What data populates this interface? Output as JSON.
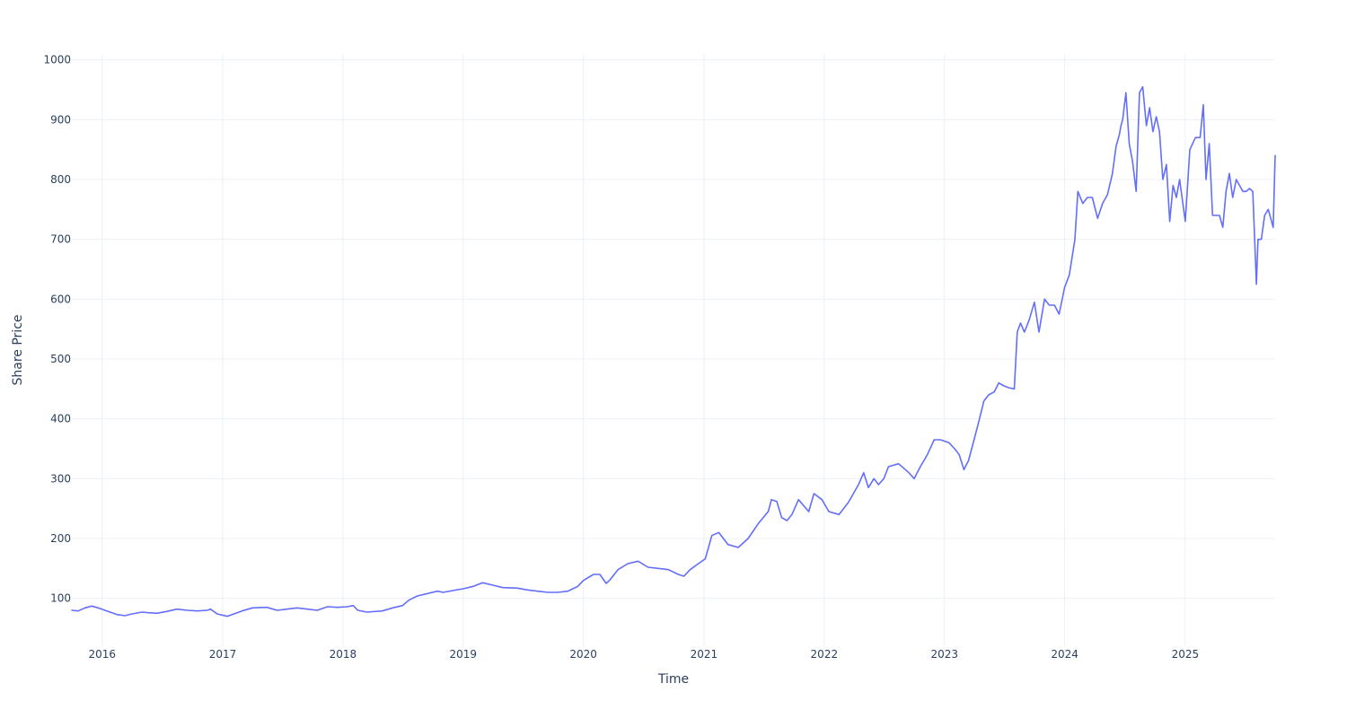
{
  "chart_data": {
    "type": "line",
    "title": "",
    "xlabel": "Time",
    "ylabel": "Share Price",
    "x_tick_labels": [
      "2016",
      "2017",
      "2018",
      "2019",
      "2020",
      "2021",
      "2022",
      "2023",
      "2024",
      "2025"
    ],
    "x_tick_years": [
      2016,
      2017,
      2018,
      2019,
      2020,
      2021,
      2022,
      2023,
      2024,
      2025
    ],
    "y_ticks": [
      100,
      200,
      300,
      400,
      500,
      600,
      700,
      800,
      900,
      1000
    ],
    "y_tick_labels": [
      "100",
      "200",
      "300",
      "400",
      "500",
      "600",
      "700",
      "800",
      "900",
      "1000"
    ],
    "xlim": [
      "2015-10-01",
      "2025-10-01"
    ],
    "ylim": [
      20,
      1010
    ],
    "grid": true,
    "legend": "none",
    "colors": {
      "line": "#636efa",
      "grid": "#ebf0f8",
      "text": "#2a3f5f"
    },
    "series": [
      {
        "x": [
          "2015-10-01",
          "2015-10-20",
          "2015-11-10",
          "2015-12-01",
          "2015-12-20",
          "2016-01-15",
          "2016-02-15",
          "2016-03-10",
          "2016-04-01",
          "2016-05-01",
          "2016-05-20",
          "2016-06-15",
          "2016-07-15",
          "2016-08-15",
          "2016-09-15",
          "2016-10-15",
          "2016-11-15",
          "2016-11-25",
          "2016-12-15",
          "2017-01-15",
          "2017-03-01",
          "2017-04-01",
          "2017-05-15",
          "2017-06-15",
          "2017-07-15",
          "2017-08-15",
          "2017-09-15",
          "2017-10-15",
          "2017-11-15",
          "2017-12-15",
          "2018-01-15",
          "2018-02-01",
          "2018-02-15",
          "2018-03-15",
          "2018-05-01",
          "2018-06-01",
          "2018-07-01",
          "2018-07-20",
          "2018-08-15",
          "2018-09-15",
          "2018-10-15",
          "2018-11-01",
          "2018-12-01",
          "2019-01-01",
          "2019-02-01",
          "2019-03-01",
          "2019-04-01",
          "2019-05-01",
          "2019-06-15",
          "2019-07-15",
          "2019-08-15",
          "2019-09-15",
          "2019-10-15",
          "2019-11-15",
          "2019-12-15",
          "2020-01-01",
          "2020-02-01",
          "2020-02-20",
          "2020-03-10",
          "2020-03-20",
          "2020-04-15",
          "2020-05-15",
          "2020-06-15",
          "2020-07-15",
          "2020-08-15",
          "2020-09-15",
          "2020-10-15",
          "2020-11-01",
          "2020-11-20",
          "2020-12-15",
          "2021-01-05",
          "2021-01-25",
          "2021-02-15",
          "2021-03-15",
          "2021-04-15",
          "2021-05-15",
          "2021-06-15",
          "2021-07-15",
          "2021-07-25",
          "2021-08-10",
          "2021-08-25",
          "2021-09-10",
          "2021-09-25",
          "2021-10-15",
          "2021-11-15",
          "2021-12-01",
          "2021-12-25",
          "2022-01-15",
          "2022-02-15",
          "2022-03-15",
          "2022-04-15",
          "2022-05-01",
          "2022-05-15",
          "2022-06-01",
          "2022-06-15",
          "2022-07-01",
          "2022-07-15",
          "2022-08-15",
          "2022-09-15",
          "2022-10-01",
          "2022-10-20",
          "2022-11-10",
          "2022-12-01",
          "2022-12-20",
          "2023-01-15",
          "2023-02-01",
          "2023-02-15",
          "2023-03-01",
          "2023-03-15",
          "2023-04-01",
          "2023-04-15",
          "2023-05-01",
          "2023-05-15",
          "2023-06-01",
          "2023-06-15",
          "2023-07-01",
          "2023-07-15",
          "2023-08-01",
          "2023-08-10",
          "2023-08-20",
          "2023-09-01",
          "2023-09-15",
          "2023-10-01",
          "2023-10-15",
          "2023-11-01",
          "2023-11-15",
          "2023-12-01",
          "2023-12-15",
          "2024-01-01",
          "2024-01-15",
          "2024-02-01",
          "2024-02-10",
          "2024-02-25",
          "2024-03-10",
          "2024-03-25",
          "2024-04-10",
          "2024-04-25",
          "2024-05-10",
          "2024-05-25",
          "2024-06-05",
          "2024-06-15",
          "2024-06-20",
          "2024-06-25",
          "2024-07-05",
          "2024-07-15",
          "2024-07-25",
          "2024-08-05",
          "2024-08-15",
          "2024-08-25",
          "2024-09-05",
          "2024-09-15",
          "2024-09-25",
          "2024-10-05",
          "2024-10-15",
          "2024-10-25",
          "2024-11-05",
          "2024-11-15",
          "2024-11-25",
          "2024-12-05",
          "2024-12-15",
          "2025-01-01",
          "2025-01-15",
          "2025-02-01",
          "2025-02-15",
          "2025-02-25",
          "2025-03-05",
          "2025-03-15",
          "2025-03-25",
          "2025-04-05",
          "2025-04-15",
          "2025-04-25",
          "2025-05-05",
          "2025-05-15",
          "2025-05-25",
          "2025-06-05",
          "2025-06-15",
          "2025-06-25",
          "2025-07-05",
          "2025-07-15",
          "2025-07-25",
          "2025-08-05",
          "2025-08-10",
          "2025-08-20",
          "2025-08-30",
          "2025-09-10",
          "2025-09-20",
          "2025-09-25",
          "2025-10-01"
        ],
        "y": [
          80,
          79,
          84,
          87,
          84,
          79,
          73,
          71,
          74,
          77,
          76,
          75,
          78,
          82,
          80,
          79,
          80,
          82,
          74,
          70,
          79,
          84,
          85,
          80,
          82,
          84,
          82,
          80,
          86,
          85,
          86,
          88,
          80,
          77,
          79,
          84,
          88,
          97,
          104,
          108,
          112,
          110,
          113,
          116,
          120,
          126,
          122,
          118,
          117,
          114,
          112,
          110,
          110,
          112,
          120,
          130,
          140,
          140,
          125,
          130,
          148,
          158,
          162,
          152,
          150,
          148,
          140,
          137,
          148,
          158,
          166,
          205,
          210,
          190,
          185,
          200,
          225,
          245,
          265,
          262,
          235,
          230,
          240,
          265,
          245,
          275,
          265,
          245,
          240,
          260,
          290,
          310,
          285,
          300,
          290,
          300,
          320,
          325,
          310,
          300,
          320,
          340,
          365,
          365,
          360,
          350,
          340,
          315,
          330,
          365,
          395,
          430,
          440,
          445,
          460,
          455,
          452,
          450,
          545,
          560,
          545,
          565,
          595,
          545,
          600,
          590,
          590,
          575,
          620,
          640,
          700,
          780,
          760,
          770,
          770,
          735,
          760,
          775,
          810,
          855,
          875,
          890,
          900,
          945,
          860,
          830,
          780,
          945,
          955,
          890,
          920,
          880,
          905,
          880,
          800,
          825,
          730,
          790,
          770,
          800,
          730,
          850,
          870,
          870,
          925,
          800,
          860,
          740,
          740,
          740,
          720,
          780,
          810,
          770,
          800,
          790,
          780,
          780,
          785,
          780,
          625,
          700,
          700,
          740,
          750,
          730,
          720,
          840
        ]
      }
    ]
  }
}
